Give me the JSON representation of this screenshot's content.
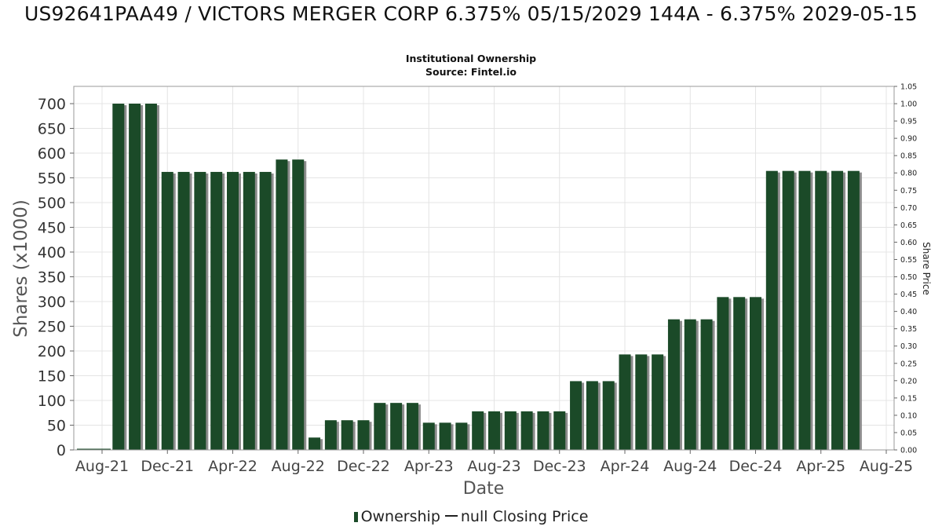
{
  "chart_data": {
    "type": "bar",
    "title": "US92641PAA49 / VICTORS MERGER CORP 6.375% 05/15/2029 144A - 6.375% 2029-05-15",
    "subtitle_lines": [
      "Institutional Ownership",
      "Source: Fintel.io"
    ],
    "xlabel": "Date",
    "ylabel": "Shares (x1000)",
    "y2label": "Share Price",
    "x_ticks": [
      "Aug-21",
      "Dec-21",
      "Apr-22",
      "Aug-22",
      "Dec-22",
      "Apr-23",
      "Aug-23",
      "Dec-23",
      "Apr-24",
      "Aug-24",
      "Dec-24",
      "Apr-25",
      "Aug-25"
    ],
    "x_tick_dates": [
      "2021-08-01",
      "2021-12-01",
      "2022-04-01",
      "2022-08-01",
      "2022-12-01",
      "2023-04-01",
      "2023-08-01",
      "2023-12-01",
      "2024-04-01",
      "2024-08-01",
      "2024-12-01",
      "2025-04-01",
      "2025-08-01"
    ],
    "ylim": [
      0,
      700
    ],
    "y_ticks": [
      0,
      50,
      100,
      150,
      200,
      250,
      300,
      350,
      400,
      450,
      500,
      550,
      600,
      650,
      700
    ],
    "y2lim": [
      0,
      1.05
    ],
    "y2_ticks": [
      "0.00",
      "0.05",
      "0.10",
      "0.15",
      "0.20",
      "0.25",
      "0.30",
      "0.35",
      "0.40",
      "0.45",
      "0.50",
      "0.55",
      "0.60",
      "0.65",
      "0.70",
      "0.75",
      "0.80",
      "0.85",
      "0.90",
      "0.95",
      "1.00",
      "1.05"
    ],
    "grid": true,
    "legend_position": "bottom",
    "series": [
      {
        "name": "Ownership",
        "color": "#1b4a28",
        "points": [
          {
            "date": "2021-09-01",
            "value": 700
          },
          {
            "date": "2021-10-01",
            "value": 700
          },
          {
            "date": "2021-11-01",
            "value": 700
          },
          {
            "date": "2021-12-01",
            "value": 562
          },
          {
            "date": "2022-01-01",
            "value": 562
          },
          {
            "date": "2022-02-01",
            "value": 562
          },
          {
            "date": "2022-03-01",
            "value": 562
          },
          {
            "date": "2022-04-01",
            "value": 562
          },
          {
            "date": "2022-05-01",
            "value": 562
          },
          {
            "date": "2022-06-01",
            "value": 562
          },
          {
            "date": "2022-07-01",
            "value": 587
          },
          {
            "date": "2022-08-01",
            "value": 587
          },
          {
            "date": "2022-09-01",
            "value": 25
          },
          {
            "date": "2022-10-01",
            "value": 60
          },
          {
            "date": "2022-11-01",
            "value": 60
          },
          {
            "date": "2022-12-01",
            "value": 60
          },
          {
            "date": "2023-01-01",
            "value": 95
          },
          {
            "date": "2023-02-01",
            "value": 95
          },
          {
            "date": "2023-03-01",
            "value": 95
          },
          {
            "date": "2023-04-01",
            "value": 55
          },
          {
            "date": "2023-05-01",
            "value": 55
          },
          {
            "date": "2023-06-01",
            "value": 55
          },
          {
            "date": "2023-07-01",
            "value": 78
          },
          {
            "date": "2023-08-01",
            "value": 78
          },
          {
            "date": "2023-09-01",
            "value": 78
          },
          {
            "date": "2023-10-01",
            "value": 78
          },
          {
            "date": "2023-11-01",
            "value": 78
          },
          {
            "date": "2023-12-01",
            "value": 78
          },
          {
            "date": "2024-01-01",
            "value": 139
          },
          {
            "date": "2024-02-01",
            "value": 139
          },
          {
            "date": "2024-03-01",
            "value": 139
          },
          {
            "date": "2024-04-01",
            "value": 193
          },
          {
            "date": "2024-05-01",
            "value": 193
          },
          {
            "date": "2024-06-01",
            "value": 193
          },
          {
            "date": "2024-07-01",
            "value": 264
          },
          {
            "date": "2024-08-01",
            "value": 264
          },
          {
            "date": "2024-09-01",
            "value": 264
          },
          {
            "date": "2024-10-01",
            "value": 309
          },
          {
            "date": "2024-11-01",
            "value": 309
          },
          {
            "date": "2024-12-01",
            "value": 309
          },
          {
            "date": "2025-01-01",
            "value": 564
          },
          {
            "date": "2025-02-01",
            "value": 564
          },
          {
            "date": "2025-03-01",
            "value": 564
          },
          {
            "date": "2025-04-01",
            "value": 564
          },
          {
            "date": "2025-05-01",
            "value": 564
          },
          {
            "date": "2025-06-01",
            "value": 564
          }
        ]
      },
      {
        "name": "null Closing Price",
        "color": "#222222",
        "points": []
      }
    ]
  }
}
